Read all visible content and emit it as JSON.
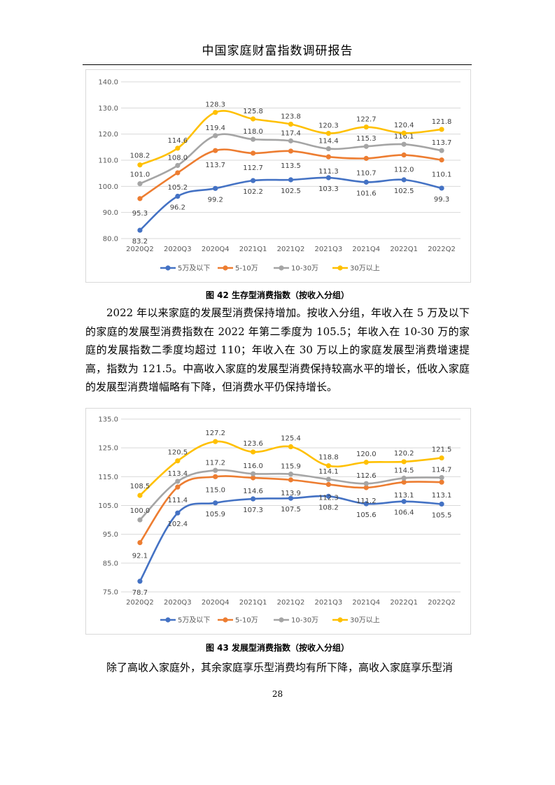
{
  "page": {
    "header": "中国家庭财富指数调研报告",
    "page_number": "28"
  },
  "figures": [
    {
      "caption": "图 42 生存型消费指数（按收入分组）"
    },
    {
      "caption": "图 43 发展型消费指数（按收入分组）"
    }
  ],
  "paragraphs": [
    "2022 年以来家庭的发展型消费保持增加。按收入分组，年收入在 5 万及以下的家庭的发展型消费指数在 2022 年第二季度为 105.5；年收入在 10-30 万的家庭的发展指数二季度均超过 110；年收入在 30 万以上的家庭发展型消费增速提高，指数为 121.5。中高收入家庭的发展型消费保持较高水平的增长，低收入家庭的发展型消费增幅略有下降，但消费水平仍保持增长。",
    "除了高收入家庭外，其余家庭享乐型消费均有所下降，高收入家庭享乐型消"
  ],
  "chart_data": [
    {
      "type": "line",
      "title": "",
      "categories": [
        "2020Q2",
        "2020Q3",
        "2020Q4",
        "2021Q1",
        "2021Q2",
        "2021Q3",
        "2021Q4",
        "2022Q1",
        "2022Q2"
      ],
      "ylim": [
        80.0,
        140.0
      ],
      "yticks": [
        "80.0",
        "90.0",
        "100.0",
        "110.0",
        "120.0",
        "130.0",
        "140.0"
      ],
      "grid": true,
      "legend": "bottom",
      "series": [
        {
          "name": "5万及以下",
          "color": "#4472c4",
          "values": [
            83.2,
            96.2,
            99.2,
            102.2,
            102.5,
            103.3,
            101.6,
            102.5,
            99.3
          ]
        },
        {
          "name": "5-10万",
          "color": "#ed7d31",
          "values": [
            95.3,
            105.2,
            113.7,
            112.7,
            113.5,
            111.3,
            110.7,
            112.0,
            110.1
          ]
        },
        {
          "name": "10-30万",
          "color": "#a5a5a5",
          "values": [
            101.0,
            108.0,
            119.4,
            118.0,
            117.4,
            114.4,
            115.3,
            116.1,
            113.7
          ]
        },
        {
          "name": "30万以上",
          "color": "#ffc000",
          "values": [
            108.2,
            114.6,
            128.3,
            125.8,
            123.8,
            120.3,
            122.7,
            120.4,
            121.8
          ]
        }
      ]
    },
    {
      "type": "line",
      "title": "",
      "categories": [
        "2020Q2",
        "2020Q3",
        "2020Q4",
        "2021Q1",
        "2021Q2",
        "2021Q3",
        "2021Q4",
        "2022Q1",
        "2022Q2"
      ],
      "ylim": [
        75.0,
        135.0
      ],
      "yticks": [
        "75.0",
        "85.0",
        "95.0",
        "105.0",
        "115.0",
        "125.0",
        "135.0"
      ],
      "grid": true,
      "legend": "bottom",
      "series": [
        {
          "name": "5万及以下",
          "color": "#4472c4",
          "values": [
            78.7,
            102.4,
            105.9,
            107.3,
            107.5,
            108.2,
            105.6,
            106.4,
            105.5
          ]
        },
        {
          "name": "5-10万",
          "color": "#ed7d31",
          "values": [
            92.1,
            111.4,
            115.0,
            114.6,
            113.9,
            112.3,
            111.2,
            113.1,
            113.1
          ]
        },
        {
          "name": "10-30万",
          "color": "#a5a5a5",
          "values": [
            100.0,
            113.4,
            117.2,
            116.0,
            115.9,
            114.1,
            112.6,
            114.5,
            114.7
          ]
        },
        {
          "name": "30万以上",
          "color": "#ffc000",
          "values": [
            108.5,
            120.5,
            127.2,
            123.6,
            125.4,
            118.8,
            120.0,
            120.2,
            121.5
          ]
        }
      ]
    }
  ]
}
